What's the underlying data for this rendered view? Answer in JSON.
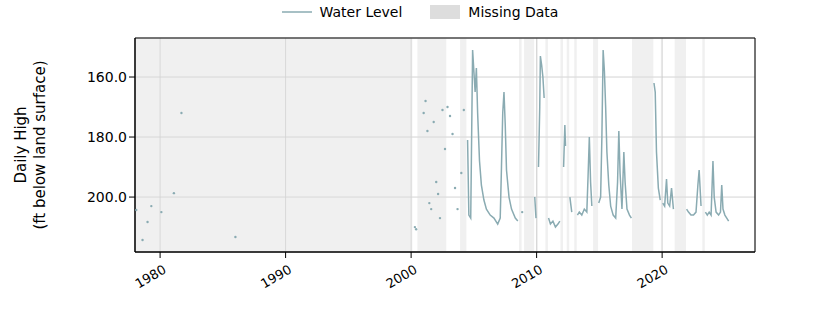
{
  "chart_data": {
    "type": "line",
    "ylabel": "Daily High\n(ft below land surface)",
    "xlim": [
      1978.0,
      2027.4
    ],
    "xticks": [
      1980,
      1990,
      2000,
      2010,
      2020
    ],
    "ylim": [
      218.3,
      147
    ],
    "yticks": [
      {
        "value": 160,
        "label": "160.0"
      },
      {
        "value": 180,
        "label": "180.0"
      },
      {
        "value": 200,
        "label": "200.0"
      }
    ],
    "grid": true,
    "legend": "top",
    "series": [
      {
        "name": "Water Level",
        "color": "#8aabb2",
        "x": [
          1978.1,
          1978.3,
          1978.6,
          1978.8,
          1979.0,
          1979.15,
          1979.3,
          1979.7,
          1980.1,
          1980.6,
          1981.1,
          1981.4,
          1981.7,
          1984,
          1986.0,
          1993,
          2000.3,
          2000.35,
          2000.4,
          2000.7,
          2001.0,
          2001.07,
          2001.15,
          2001.22,
          2001.3,
          2001.37,
          2001.45,
          2001.52,
          2001.6,
          2001.7,
          2001.8,
          2001.9,
          2002.0,
          2002.07,
          2002.15,
          2002.22,
          2002.3,
          2002.4,
          2002.5,
          2002.6,
          2002.7,
          2002.8,
          2002.9,
          2003.0,
          2003.1,
          2003.2,
          2003.3,
          2003.4,
          2003.5,
          2003.6,
          2003.7,
          2003.85,
          2004.0,
          2004.1,
          2004.2,
          2004.35,
          2004.5,
          2004.6,
          2004.75,
          2004.9,
          2005.0,
          2005.1,
          2005.2,
          2005.3,
          2005.45,
          2005.6,
          2005.8,
          2006.0,
          2006.3,
          2006.6,
          2006.9,
          2007.1,
          2007.2,
          2007.3,
          2007.4,
          2007.5,
          2007.6,
          2007.8,
          2008.0,
          2008.3,
          2008.5,
          2008.7,
          2008.85,
          2009.4,
          2009.85,
          2009.95,
          2010.05,
          2010.15,
          2010.25,
          2010.3,
          2010.4,
          2010.5,
          2010.6,
          2010.8,
          2010.95,
          2011.1,
          2011.3,
          2011.5,
          2011.7,
          2011.85,
          2012.0,
          2012.15,
          2012.25,
          2012.3,
          2012.5,
          2012.65,
          2012.8,
          2013.1,
          2013.25,
          2013.4,
          2013.6,
          2013.8,
          2014.0,
          2014.1,
          2014.2,
          2014.3,
          2014.4,
          2014.7,
          2014.95,
          2015.1,
          2015.2,
          2015.3,
          2015.4,
          2015.5,
          2015.6,
          2015.75,
          2015.9,
          2016.1,
          2016.3,
          2016.45,
          2016.55,
          2016.65,
          2016.8,
          2016.95,
          2017.05,
          2017.2,
          2017.4,
          2017.55,
          2018.5,
          2019.35,
          2019.45,
          2019.55,
          2019.7,
          2019.85,
          2019.95,
          2020.05,
          2020.2,
          2020.35,
          2020.45,
          2020.6,
          2020.75,
          2020.9,
          2021.5,
          2021.95,
          2022.1,
          2022.3,
          2022.5,
          2022.7,
          2022.85,
          2022.95,
          2023.1,
          2023.3,
          2023.45,
          2023.6,
          2023.75,
          2023.9,
          2024.05,
          2024.15,
          2024.3,
          2024.5,
          2024.65,
          2024.75,
          2024.85,
          2025.0,
          2025.15,
          2025.3
        ],
        "values": [
          204.3,
          null,
          214.3,
          null,
          208.3,
          null,
          203,
          null,
          205,
          null,
          198.7,
          null,
          172,
          null,
          213.3,
          null,
          210,
          null,
          210.7,
          null,
          172,
          null,
          168,
          null,
          178,
          null,
          202,
          null,
          204,
          null,
          175,
          null,
          195,
          null,
          199,
          null,
          207,
          null,
          171,
          null,
          184,
          null,
          170,
          null,
          173,
          null,
          179,
          null,
          197,
          null,
          204,
          null,
          192,
          null,
          171,
          null,
          181,
          206,
          207,
          151,
          158,
          165,
          157,
          172,
          188,
          196,
          201,
          204,
          206,
          207,
          209,
          207,
          190,
          172,
          165,
          176,
          191,
          200,
          204,
          207,
          208,
          null,
          205,
          null,
          200,
          207,
          null,
          190,
          170,
          153,
          156,
          160,
          167,
          null,
          207,
          209,
          208,
          210,
          209,
          208,
          null,
          190,
          176,
          183,
          null,
          200,
          205,
          null,
          206,
          205,
          206,
          204,
          205,
          193,
          180,
          195,
          203,
          null,
          202,
          200,
          180,
          151,
          158,
          170,
          185,
          196,
          203,
          206,
          207,
          195,
          178,
          192,
          204,
          185,
          195,
          204,
          206,
          207,
          null,
          162,
          165,
          185,
          197,
          201,
          null,
          202,
          203,
          194,
          202,
          203,
          197,
          204,
          null,
          204,
          205,
          206,
          206,
          205,
          196,
          191,
          203,
          null,
          205,
          206,
          205,
          206,
          188,
          200,
          205,
          206,
          205,
          196,
          204,
          206,
          207,
          208
        ]
      }
    ],
    "missing_data": {
      "name": "Missing Data",
      "color": "#dddddd",
      "ranges": [
        [
          1978.0,
          2000.1
        ],
        [
          2000.5,
          2002.8
        ],
        [
          2003.9,
          2004.4
        ],
        [
          2008.6,
          2008.8
        ],
        [
          2009.0,
          2009.8
        ],
        [
          2010.0,
          2010.1
        ],
        [
          2010.7,
          2010.9
        ],
        [
          2011.9,
          2012.1
        ],
        [
          2012.4,
          2012.6
        ],
        [
          2013.0,
          2013.2
        ],
        [
          2014.5,
          2014.9
        ],
        [
          2017.6,
          2019.3
        ],
        [
          2019.9,
          2020.0
        ],
        [
          2021.0,
          2021.9
        ],
        [
          2023.2,
          2023.4
        ]
      ]
    }
  }
}
